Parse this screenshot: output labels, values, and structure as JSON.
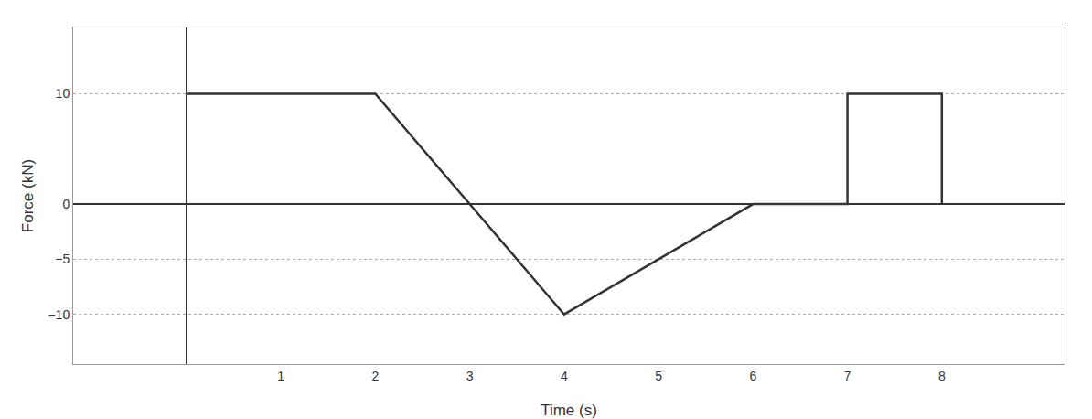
{
  "chart_data": {
    "type": "line",
    "x": [
      0,
      2,
      3,
      4,
      5,
      6,
      7,
      7,
      8,
      8
    ],
    "values": [
      10,
      10,
      0,
      -10,
      -5,
      0,
      0,
      10,
      10,
      0
    ],
    "color": "#333333",
    "xlabel": "Time (s)",
    "ylabel": "Force (kN)",
    "xlim": [
      -1.2,
      9.3
    ],
    "ylim": [
      -14.5,
      16.0
    ],
    "xticks": [
      1,
      2,
      3,
      4,
      5,
      6,
      7,
      8
    ],
    "yticks": [
      10,
      0,
      {
        "value": -5,
        "label": "−5"
      },
      {
        "value": -10,
        "label": "−10"
      }
    ],
    "grid": "y"
  }
}
